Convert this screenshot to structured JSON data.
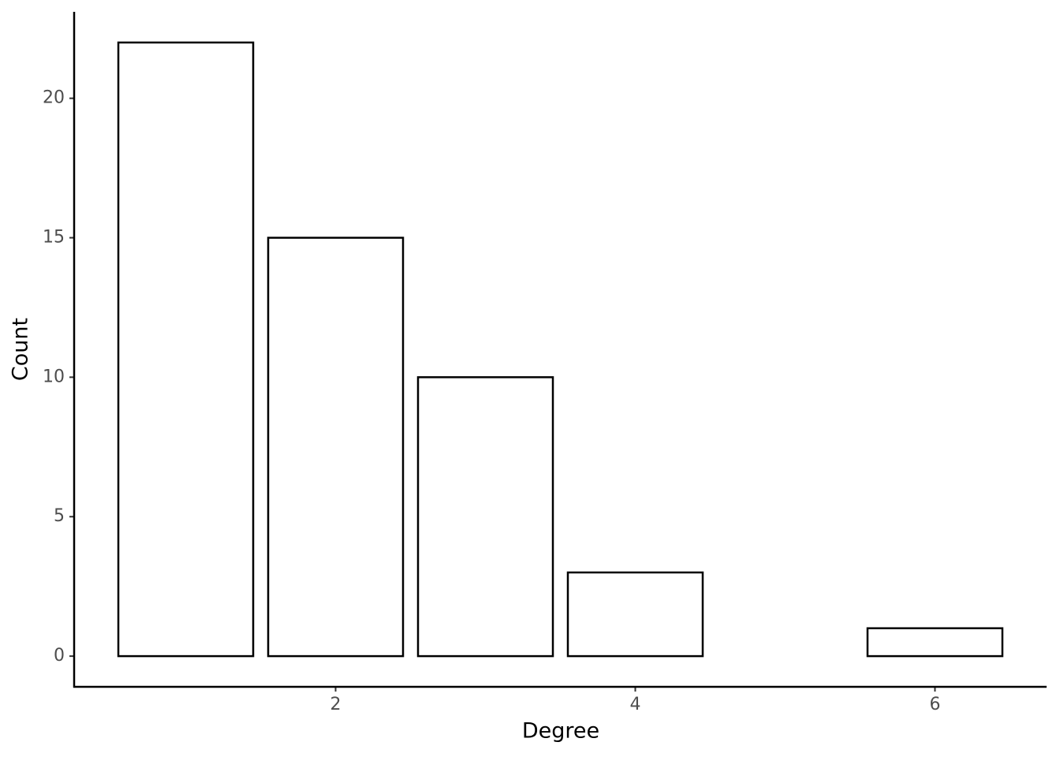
{
  "chart_data": {
    "type": "bar",
    "x_label": "Degree",
    "y_label": "Count",
    "x": [
      1,
      2,
      3,
      4,
      6
    ],
    "values": [
      22,
      15,
      10,
      3,
      1
    ],
    "color": "#ffffff",
    "edge_color": "#000000",
    "xlim": [
      0.255,
      6.745
    ],
    "xticks": [
      2,
      4,
      6
    ],
    "ylim": [
      -1.1,
      23.1
    ],
    "yticks": [
      0,
      5,
      10,
      15,
      20
    ],
    "grid": false
  }
}
